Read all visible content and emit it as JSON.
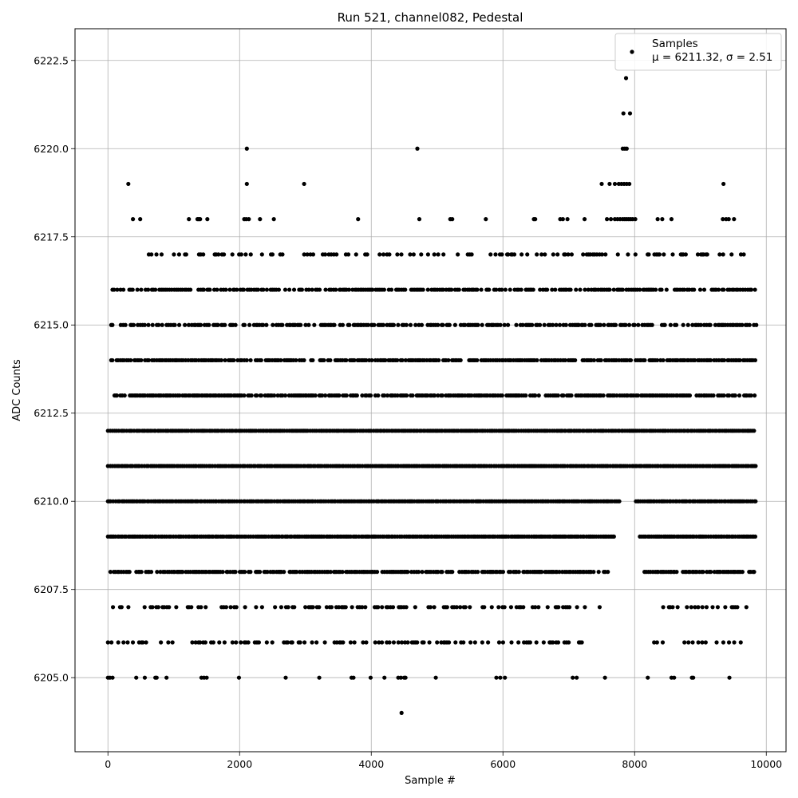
{
  "chart_data": {
    "type": "scatter",
    "title": "Run 521, channel082, Pedestal",
    "xlabel": "Sample #",
    "ylabel": "ADC Counts",
    "xlim": [
      -500,
      10300
    ],
    "ylim": [
      6202.9,
      6223.4
    ],
    "xticks": [
      0,
      2000,
      4000,
      6000,
      8000,
      10000
    ],
    "xtick_labels": [
      "0",
      "2000",
      "4000",
      "6000",
      "8000",
      "10000"
    ],
    "yticks": [
      6205.0,
      6207.5,
      6210.0,
      6212.5,
      6215.0,
      6217.5,
      6220.0,
      6222.5
    ],
    "ytick_labels": [
      "6205.0",
      "6207.5",
      "6210.0",
      "6212.5",
      "6215.0",
      "6217.5",
      "6220.0",
      "6222.5"
    ],
    "grid": true,
    "legend_position": "top-right",
    "marker_color": "#000000",
    "series": [
      {
        "name": "Samples",
        "stats_label": "μ = 6211.32, σ = 2.51",
        "mean": 6211.32,
        "std": 2.51,
        "x_range": [
          0,
          9850
        ],
        "value_bands": [
          {
            "y": 6212,
            "segments": [
              [
                0,
                9850
              ]
            ]
          },
          {
            "y": 6211,
            "segments": [
              [
                0,
                9850
              ]
            ]
          },
          {
            "y": 6210,
            "segments": [
              [
                0,
                7780
              ],
              [
                8020,
                9850
              ]
            ]
          },
          {
            "y": 6209,
            "segments": [
              [
                0,
                7700
              ],
              [
                8080,
                9850
              ]
            ]
          },
          {
            "y": 6213,
            "segments": [
              [
                100,
                9850
              ]
            ]
          },
          {
            "y": 6214,
            "segments": [
              [
                50,
                9850
              ]
            ]
          },
          {
            "y": 6208,
            "segments": [
              [
                0,
                7620
              ],
              [
                8150,
                9850
              ]
            ]
          },
          {
            "y": 6215,
            "segments": [
              [
                50,
                9850
              ]
            ]
          },
          {
            "y": 6216,
            "segments": [
              [
                50,
                9850
              ]
            ]
          },
          {
            "y": 6207,
            "segments": [
              [
                0,
                7500
              ],
              [
                8350,
                9850
              ]
            ]
          },
          {
            "y": 6206,
            "segments": [
              [
                0,
                7300
              ],
              [
                8180,
                9800
              ]
            ]
          },
          {
            "y": 6217,
            "segments": [
              [
                600,
                9850
              ]
            ]
          }
        ],
        "points": [
          [
            0,
            6205
          ],
          [
            30,
            6205
          ],
          [
            70,
            6205
          ],
          [
            430,
            6205
          ],
          [
            560,
            6205
          ],
          [
            720,
            6205
          ],
          [
            740,
            6205
          ],
          [
            890,
            6205
          ],
          [
            1420,
            6205
          ],
          [
            1460,
            6205
          ],
          [
            1500,
            6205
          ],
          [
            1990,
            6205
          ],
          [
            2700,
            6205
          ],
          [
            3210,
            6205
          ],
          [
            3700,
            6205
          ],
          [
            3730,
            6205
          ],
          [
            3990,
            6205
          ],
          [
            4200,
            6205
          ],
          [
            4410,
            6205
          ],
          [
            4450,
            6205
          ],
          [
            4500,
            6205
          ],
          [
            4520,
            6205
          ],
          [
            4980,
            6205
          ],
          [
            5900,
            6205
          ],
          [
            5960,
            6205
          ],
          [
            6030,
            6205
          ],
          [
            7060,
            6205
          ],
          [
            7120,
            6205
          ],
          [
            7550,
            6205
          ],
          [
            8200,
            6205
          ],
          [
            8560,
            6205
          ],
          [
            8600,
            6205
          ],
          [
            8870,
            6205
          ],
          [
            8890,
            6205
          ],
          [
            9440,
            6205
          ],
          [
            4460,
            6204
          ],
          [
            310,
            6219
          ],
          [
            2110,
            6219
          ],
          [
            2980,
            6219
          ],
          [
            7500,
            6219
          ],
          [
            7620,
            6219
          ],
          [
            7700,
            6219
          ],
          [
            7760,
            6219
          ],
          [
            7800,
            6219
          ],
          [
            7840,
            6219
          ],
          [
            7880,
            6219
          ],
          [
            7920,
            6219
          ],
          [
            9350,
            6219
          ],
          [
            380,
            6218
          ],
          [
            490,
            6218
          ],
          [
            1230,
            6218
          ],
          [
            1360,
            6218
          ],
          [
            1380,
            6218
          ],
          [
            1400,
            6218
          ],
          [
            1510,
            6218
          ],
          [
            2070,
            6218
          ],
          [
            2100,
            6218
          ],
          [
            2140,
            6218
          ],
          [
            2310,
            6218
          ],
          [
            2520,
            6218
          ],
          [
            3800,
            6218
          ],
          [
            4730,
            6218
          ],
          [
            5200,
            6218
          ],
          [
            5230,
            6218
          ],
          [
            5740,
            6218
          ],
          [
            6470,
            6218
          ],
          [
            6490,
            6218
          ],
          [
            6870,
            6218
          ],
          [
            6910,
            6218
          ],
          [
            6980,
            6218
          ],
          [
            7240,
            6218
          ],
          [
            7580,
            6218
          ],
          [
            7640,
            6218
          ],
          [
            7700,
            6218
          ],
          [
            7740,
            6218
          ],
          [
            7780,
            6218
          ],
          [
            7820,
            6218
          ],
          [
            7850,
            6218
          ],
          [
            7880,
            6218
          ],
          [
            7910,
            6218
          ],
          [
            7940,
            6218
          ],
          [
            7970,
            6218
          ],
          [
            8010,
            6218
          ],
          [
            8350,
            6218
          ],
          [
            8420,
            6218
          ],
          [
            8560,
            6218
          ],
          [
            9340,
            6218
          ],
          [
            9390,
            6218
          ],
          [
            9430,
            6218
          ],
          [
            9510,
            6218
          ],
          [
            2110,
            6220
          ],
          [
            4700,
            6220
          ],
          [
            7820,
            6220
          ],
          [
            7850,
            6220
          ],
          [
            7880,
            6220
          ],
          [
            7830,
            6221
          ],
          [
            7930,
            6221
          ],
          [
            7870,
            6222
          ]
        ]
      }
    ]
  }
}
